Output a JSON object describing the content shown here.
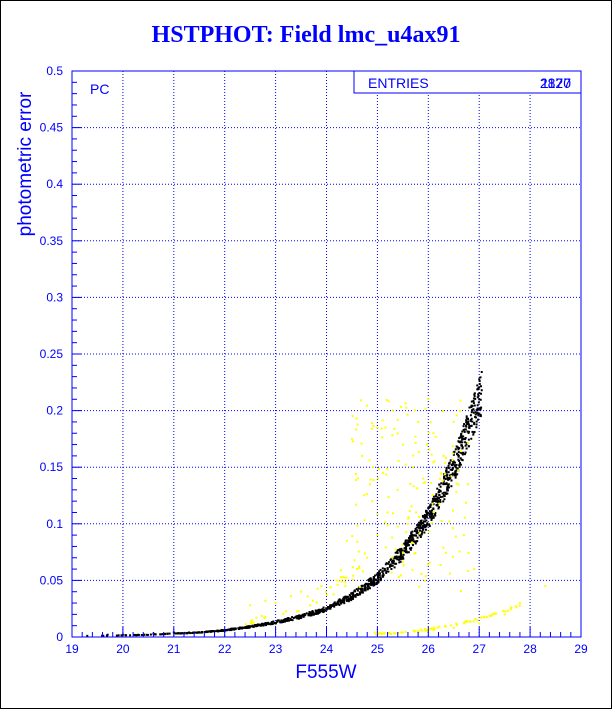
{
  "chart_data": {
    "type": "scatter",
    "title": "HSTPHOT: Field lmc_u4ax91",
    "xlabel": "F555W",
    "ylabel": "photometric error",
    "panel_label": "PC",
    "stats": {
      "label": "ENTRIES",
      "values": [
        "2870",
        "1127"
      ]
    },
    "xlim": [
      19,
      29
    ],
    "ylim": [
      0,
      0.5
    ],
    "xticks": [
      19,
      20,
      21,
      22,
      23,
      24,
      25,
      26,
      27,
      28,
      29
    ],
    "yticks": [
      0,
      0.05,
      0.1,
      0.15,
      0.2,
      0.25,
      0.3,
      0.35,
      0.4,
      0.45,
      0.5
    ],
    "grid": true,
    "colors": {
      "axis": "#0000ff",
      "series_main": "#000000",
      "series_secondary": "#ffff00",
      "title": "#0000ff"
    },
    "series": [
      {
        "color": "#000000",
        "trend": [
          [
            19.5,
            0.001
          ],
          [
            20.5,
            0.002
          ],
          [
            21.5,
            0.004
          ],
          [
            22,
            0.006
          ],
          [
            22.5,
            0.009
          ],
          [
            23,
            0.013
          ],
          [
            23.5,
            0.018
          ],
          [
            24,
            0.025
          ],
          [
            24.5,
            0.036
          ],
          [
            25,
            0.052
          ],
          [
            25.5,
            0.075
          ],
          [
            26,
            0.105
          ],
          [
            26.5,
            0.15
          ],
          [
            26.8,
            0.185
          ],
          [
            27.05,
            0.215
          ]
        ],
        "points": [
          [
            19.3,
            0.001
          ],
          [
            19.7,
            0.002
          ],
          [
            20.0,
            0.002
          ],
          [
            20.3,
            0.002
          ],
          [
            20.6,
            0.003
          ],
          [
            21.0,
            0.004
          ],
          [
            21.3,
            0.004
          ],
          [
            21.7,
            0.005
          ],
          [
            22.0,
            0.006
          ],
          [
            22.3,
            0.008
          ],
          [
            22.6,
            0.01
          ],
          [
            22.9,
            0.012
          ],
          [
            23.2,
            0.015
          ],
          [
            23.5,
            0.018
          ],
          [
            23.8,
            0.022
          ],
          [
            24.0,
            0.025
          ],
          [
            24.3,
            0.031
          ],
          [
            24.6,
            0.038
          ],
          [
            24.9,
            0.048
          ],
          [
            25.2,
            0.06
          ],
          [
            25.5,
            0.075
          ],
          [
            25.8,
            0.092
          ],
          [
            26.1,
            0.113
          ],
          [
            26.4,
            0.14
          ],
          [
            26.6,
            0.16
          ],
          [
            26.8,
            0.185
          ],
          [
            27.0,
            0.21
          ],
          [
            27.05,
            0.218
          ]
        ]
      },
      {
        "color": "#ffff00",
        "points": [
          [
            22.5,
            0.028
          ],
          [
            22.8,
            0.032
          ],
          [
            23.0,
            0.03
          ],
          [
            23.3,
            0.036
          ],
          [
            23.5,
            0.04
          ],
          [
            23.9,
            0.045
          ],
          [
            24.2,
            0.05
          ],
          [
            24.4,
            0.085
          ],
          [
            24.5,
            0.175
          ],
          [
            24.6,
            0.06
          ],
          [
            24.7,
            0.16
          ],
          [
            24.8,
            0.07
          ],
          [
            24.9,
            0.12
          ],
          [
            25.0,
            0.09
          ],
          [
            25.0,
            0.185
          ],
          [
            25.2,
            0.11
          ],
          [
            25.3,
            0.2
          ],
          [
            25.4,
            0.13
          ],
          [
            25.5,
            0.17
          ],
          [
            25.6,
            0.1
          ],
          [
            25.7,
            0.15
          ],
          [
            25.8,
            0.19
          ],
          [
            25.9,
            0.14
          ],
          [
            26.0,
            0.21
          ],
          [
            26.1,
            0.18
          ],
          [
            26.3,
            0.16
          ],
          [
            26.5,
            0.19
          ],
          [
            26.7,
            0.09
          ],
          [
            26.9,
            0.06
          ],
          [
            25.0,
            0.004
          ],
          [
            25.5,
            0.004
          ],
          [
            26.0,
            0.006
          ],
          [
            26.5,
            0.008
          ],
          [
            27.0,
            0.012
          ],
          [
            27.5,
            0.02
          ],
          [
            27.8,
            0.03
          ],
          [
            28.3,
            0.045
          ]
        ]
      }
    ]
  }
}
